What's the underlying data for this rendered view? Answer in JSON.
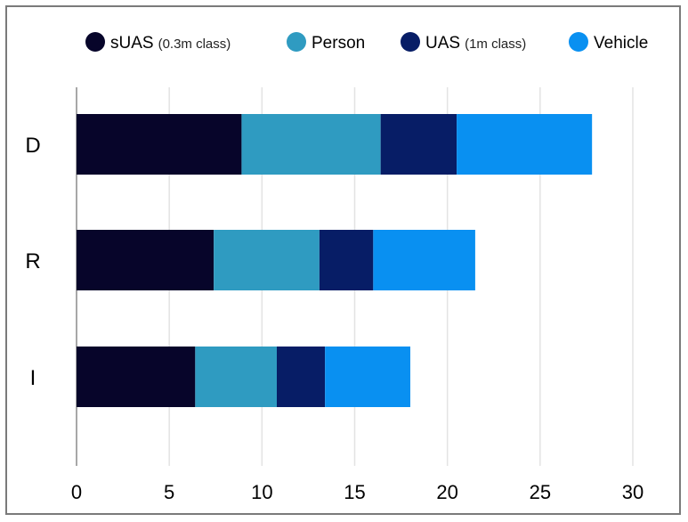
{
  "chart_data": {
    "type": "bar",
    "orientation": "horizontal",
    "stacked": true,
    "categories": [
      "D",
      "R",
      "I"
    ],
    "series": [
      {
        "name": "sUAS",
        "name_suffix": "(0.3m class)",
        "color": "#07052a",
        "values": [
          8.9,
          7.4,
          6.4
        ]
      },
      {
        "name": "Person",
        "name_suffix": "",
        "color": "#2f9bc1",
        "values": [
          7.5,
          5.7,
          4.4
        ]
      },
      {
        "name": "UAS",
        "name_suffix": "(1m class)",
        "color": "#071d66",
        "values": [
          4.1,
          2.9,
          2.6
        ]
      },
      {
        "name": "Vehicle",
        "name_suffix": "",
        "color": "#0990f1",
        "values": [
          7.3,
          5.5,
          4.6
        ]
      }
    ],
    "xlim": [
      0,
      30
    ],
    "xticks": [
      "0",
      "5",
      "10",
      "15",
      "20",
      "25",
      "30"
    ],
    "title": "",
    "xlabel": "",
    "ylabel": "",
    "grid": "vertical",
    "legend_position": "top"
  }
}
